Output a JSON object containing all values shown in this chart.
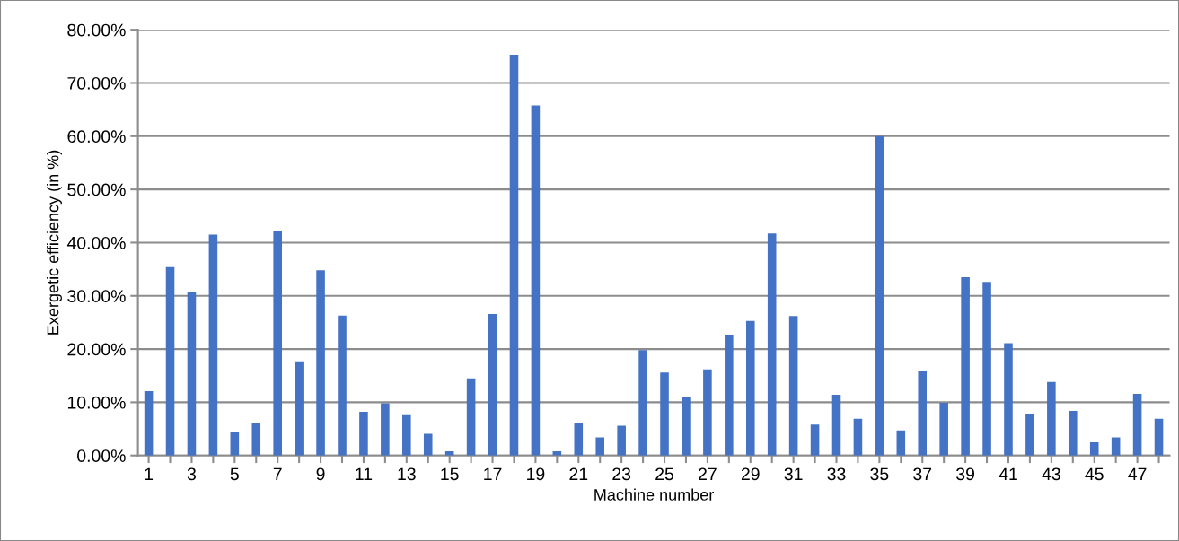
{
  "chart_data": {
    "type": "bar",
    "xlabel": "Machine number",
    "ylabel": "Exergetic efficiency (in %)",
    "categories": [
      "1",
      null,
      "3",
      null,
      "5",
      null,
      "7",
      null,
      "9",
      null,
      "11",
      null,
      "13",
      null,
      "15",
      null,
      "17",
      null,
      "19",
      null,
      "21",
      null,
      "23",
      null,
      "25",
      null,
      "27",
      null,
      "29",
      null,
      "31",
      null,
      "33",
      null,
      "35",
      null,
      "37",
      null,
      "39",
      null,
      "41",
      null,
      "43",
      null,
      "45",
      null,
      "47",
      null
    ],
    "values": [
      12.1,
      35.4,
      30.7,
      41.5,
      4.5,
      6.2,
      42.1,
      17.7,
      34.8,
      26.3,
      8.2,
      9.8,
      7.6,
      4.1,
      0.8,
      14.5,
      26.6,
      75.3,
      65.8,
      0.8,
      6.2,
      3.4,
      5.6,
      19.8,
      15.6,
      11.0,
      16.2,
      22.7,
      25.3,
      41.7,
      26.2,
      5.8,
      11.4,
      6.9,
      60.0,
      4.7,
      15.9,
      9.9,
      33.5,
      32.6,
      21.1,
      7.8,
      13.8,
      8.4,
      2.5,
      3.4,
      11.6,
      6.9
    ],
    "color": "#4472c4",
    "ylim": [
      0,
      80
    ],
    "yticks": [
      {
        "value": 0,
        "label": "0.00%"
      },
      {
        "value": 10,
        "label": "10.00%"
      },
      {
        "value": 20,
        "label": "20.00%"
      },
      {
        "value": 30,
        "label": "30.00%"
      },
      {
        "value": 40,
        "label": "40.00%"
      },
      {
        "value": 50,
        "label": "50.00%"
      },
      {
        "value": 60,
        "label": "60.00%"
      },
      {
        "value": 70,
        "label": "70.00%"
      },
      {
        "value": 80,
        "label": "80.00%"
      }
    ],
    "grid": "y"
  }
}
